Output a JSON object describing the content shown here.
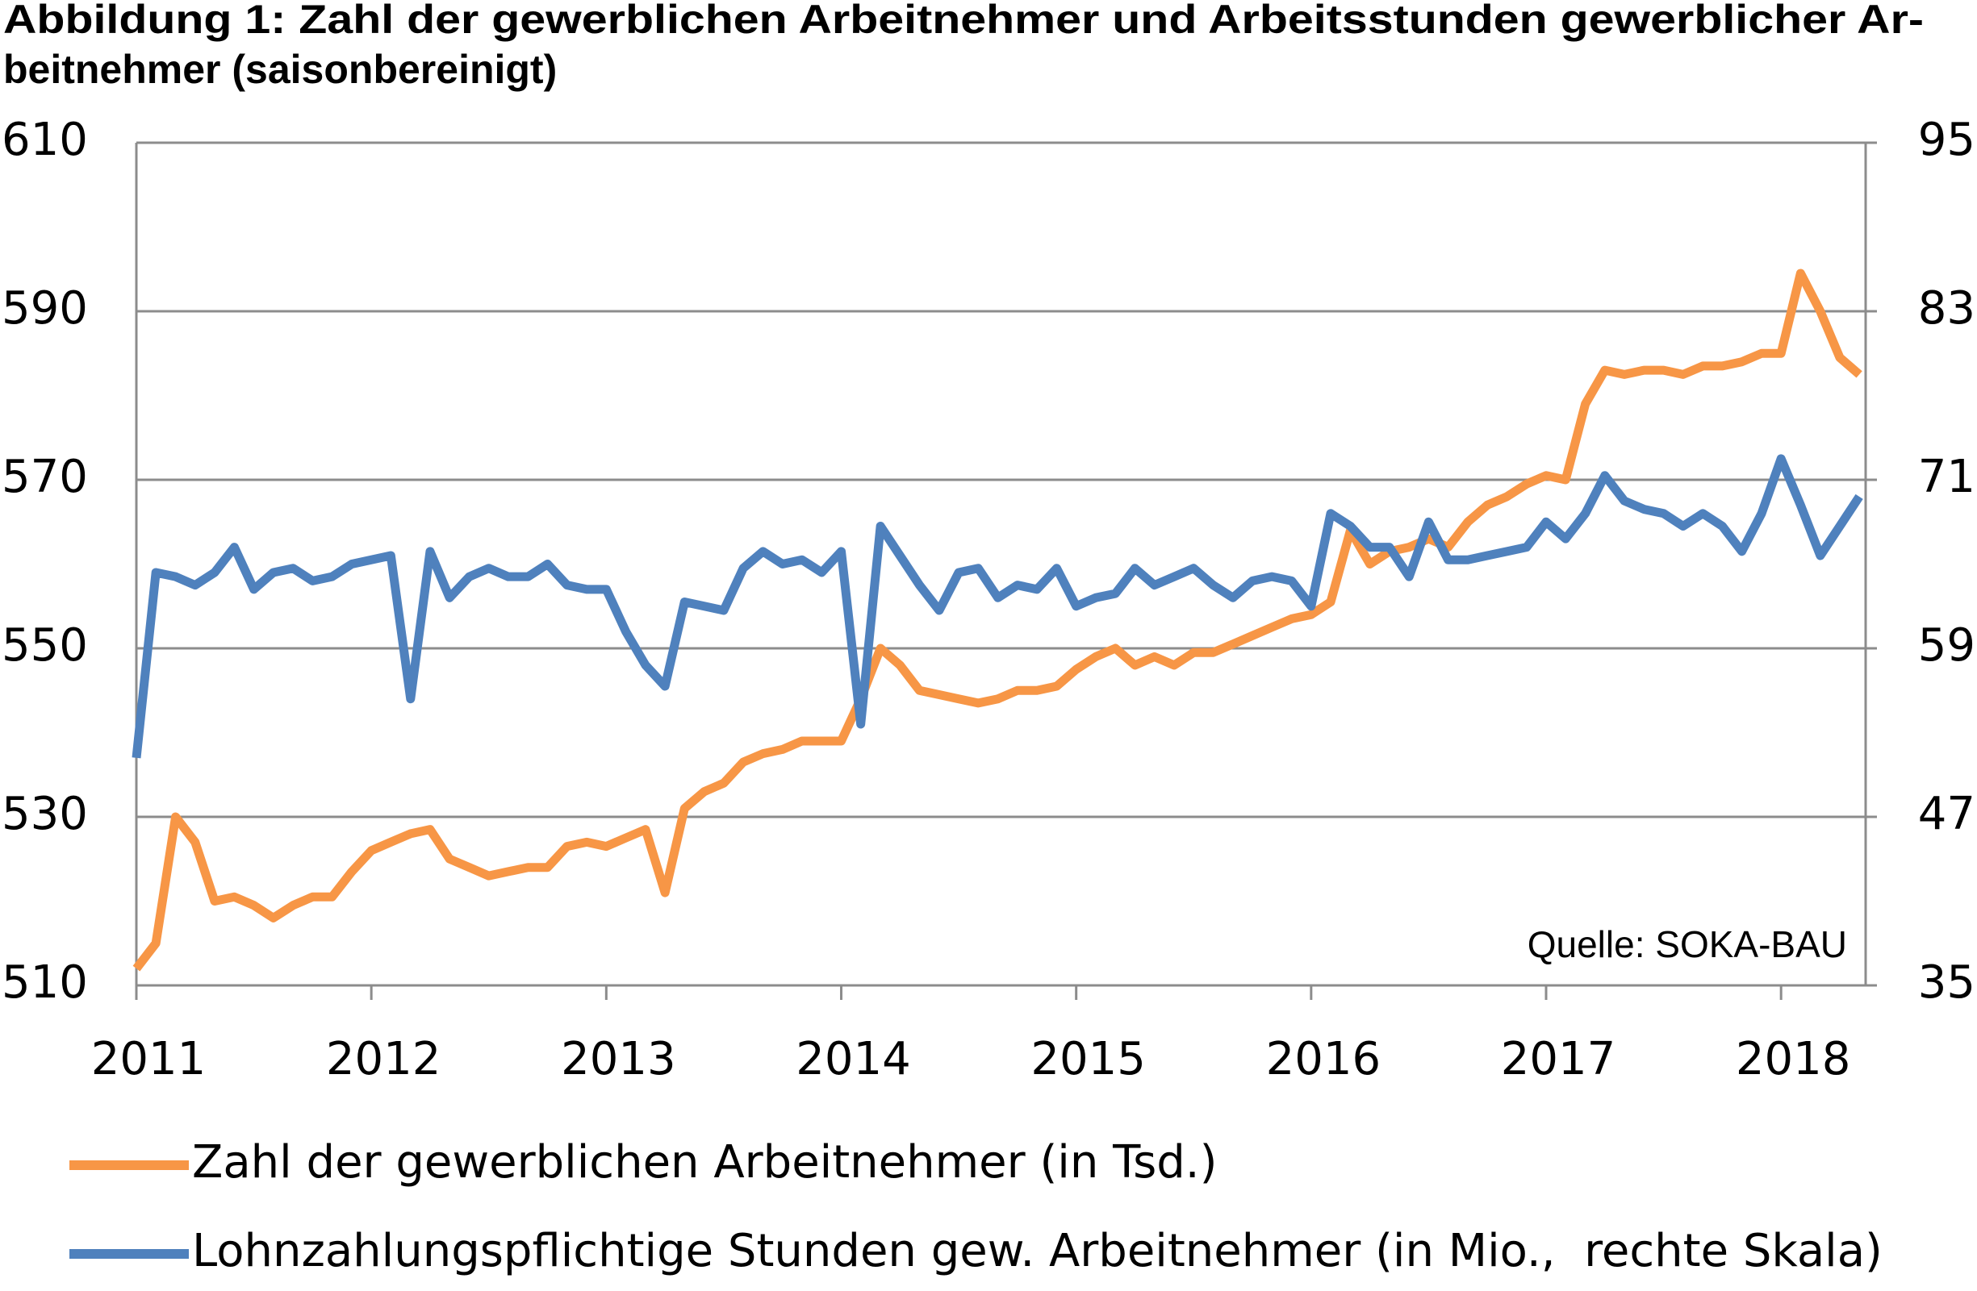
{
  "chart_data": {
    "type": "line",
    "title": [
      "Abbildung 1: Zahl der gewerblichen Arbeitnehmer und Arbeitsstunden gewerblicher Ar-",
      "beitnehmer (saisonbereinigt)"
    ],
    "annotation": "Quelle: SOKA-BAU",
    "x": [
      2011,
      2011.083,
      2011.167,
      2011.25,
      2011.333,
      2011.417,
      2011.5,
      2011.583,
      2011.667,
      2011.75,
      2011.833,
      2011.917,
      2012,
      2012.083,
      2012.167,
      2012.25,
      2012.333,
      2012.417,
      2012.5,
      2012.583,
      2012.667,
      2012.75,
      2012.833,
      2012.917,
      2013,
      2013.083,
      2013.167,
      2013.25,
      2013.333,
      2013.417,
      2013.5,
      2013.583,
      2013.667,
      2013.75,
      2013.833,
      2013.917,
      2014,
      2014.083,
      2014.167,
      2014.25,
      2014.333,
      2014.417,
      2014.5,
      2014.583,
      2014.667,
      2014.75,
      2014.833,
      2014.917,
      2015,
      2015.083,
      2015.167,
      2015.25,
      2015.333,
      2015.417,
      2015.5,
      2015.583,
      2015.667,
      2015.75,
      2015.833,
      2015.917,
      2016,
      2016.083,
      2016.167,
      2016.25,
      2016.333,
      2016.417,
      2016.5,
      2016.583,
      2016.667,
      2016.75,
      2016.833,
      2016.917,
      2017,
      2017.083,
      2017.167,
      2017.25,
      2017.333,
      2017.417,
      2017.5,
      2017.583,
      2017.667,
      2017.75,
      2017.833,
      2017.917,
      2018,
      2018.083,
      2018.167,
      2018.25,
      2018.333
    ],
    "series": [
      {
        "name": "Zahl der gewerblichen Arbeitnehmer (in Tsd.)",
        "color": "#f79646",
        "values": [
          512,
          515,
          530,
          527,
          520,
          520.5,
          519.5,
          518,
          519.5,
          520.5,
          520.5,
          523.5,
          526,
          527,
          528,
          528.5,
          525,
          524,
          523,
          523.5,
          524,
          524,
          526.5,
          527,
          526.5,
          527.5,
          528.5,
          521,
          531,
          533,
          534,
          536.5,
          537.5,
          538,
          539,
          539,
          539,
          544,
          550,
          548,
          545,
          544.5,
          544,
          543.5,
          544,
          545,
          545,
          545.5,
          547.5,
          549,
          550,
          548,
          549,
          548,
          549.5,
          549.5,
          550.5,
          551.5,
          552.5,
          553.5,
          554,
          555.5,
          564,
          560,
          561.5,
          562,
          563,
          562,
          565,
          567,
          568,
          569.5,
          570.5,
          570,
          579,
          583,
          582.5,
          583,
          583,
          582.5,
          583.5,
          583.5,
          584,
          585,
          585,
          594.5,
          590,
          584.5,
          582.5
        ]
      },
      {
        "name": "Lohnzahlungspflichtige Stunden gew. Arbeitnehmer (in Mio.,  rechte Skala)",
        "color": "#4f81bd",
        "axis": "y2",
        "values": [
          51.2,
          64.4,
          64.1,
          63.5,
          64.4,
          66.2,
          63.2,
          64.4,
          64.7,
          63.8,
          64.1,
          65.0,
          65.3,
          65.6,
          55.4,
          65.9,
          62.6,
          64.1,
          64.7,
          64.1,
          64.1,
          65.0,
          63.5,
          63.2,
          63.2,
          60.2,
          57.8,
          56.3,
          62.3,
          62.0,
          61.7,
          64.7,
          65.9,
          65.0,
          65.3,
          64.4,
          65.9,
          53.6,
          67.7,
          65.6,
          63.5,
          61.7,
          64.4,
          64.7,
          62.6,
          63.5,
          63.2,
          64.7,
          62.0,
          62.6,
          62.9,
          64.7,
          63.5,
          64.1,
          64.7,
          63.5,
          62.6,
          63.8,
          64.1,
          63.8,
          62.0,
          68.6,
          67.7,
          66.2,
          66.2,
          64.1,
          68.0,
          65.3,
          65.3,
          65.6,
          65.9,
          66.2,
          68.0,
          66.8,
          68.6,
          71.3,
          69.5,
          68.9,
          68.6,
          67.7,
          68.6,
          67.7,
          65.9,
          68.6,
          72.5,
          69.2,
          65.6,
          67.7,
          69.8
        ]
      }
    ],
    "xlim": [
      2011,
      2018.36
    ],
    "xticks": [
      2011,
      2012,
      2013,
      2014,
      2015,
      2016,
      2017,
      2018
    ],
    "ylim": [
      510,
      610
    ],
    "yticks": [
      510,
      530,
      550,
      570,
      590,
      610
    ],
    "y2lim": [
      35,
      95
    ],
    "y2ticks": [
      35,
      47,
      59,
      71,
      83,
      95
    ],
    "grid": true,
    "legend": "bottom"
  }
}
